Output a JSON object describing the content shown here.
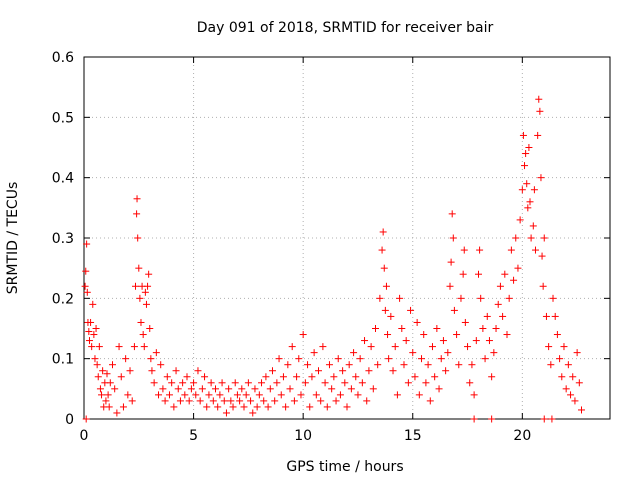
{
  "chart_data": {
    "type": "scatter",
    "title": "Day 091 of 2018, SRMTID for receiver bair",
    "xlabel": "GPS time / hours",
    "ylabel": "SRMTID / TECUs",
    "xlim": [
      0,
      24
    ],
    "ylim": [
      0,
      0.6
    ],
    "xticks": [
      0,
      5,
      10,
      15,
      20
    ],
    "yticks": [
      0,
      0.1,
      0.2,
      0.3,
      0.4,
      0.5,
      0.6
    ],
    "grid": true,
    "marker": "plus",
    "color": "#ff0000",
    "series": [
      {
        "name": "SRMTID",
        "points": [
          [
            0.05,
            0.22
          ],
          [
            0.08,
            0.245
          ],
          [
            0.12,
            0.29
          ],
          [
            0.15,
            0.21
          ],
          [
            0.18,
            0.16
          ],
          [
            0.22,
            0.145
          ],
          [
            0.25,
            0.13
          ],
          [
            0.3,
            0.16
          ],
          [
            0.35,
            0.12
          ],
          [
            0.4,
            0.19
          ],
          [
            0.45,
            0.14
          ],
          [
            0.5,
            0.1
          ],
          [
            0.55,
            0.15
          ],
          [
            0.6,
            0.09
          ],
          [
            0.65,
            0.07
          ],
          [
            0.7,
            0.12
          ],
          [
            0.75,
            0.05
          ],
          [
            0.8,
            0.04
          ],
          [
            0.85,
            0.08
          ],
          [
            0.9,
            0.02
          ],
          [
            0.95,
            0.06
          ],
          [
            1.0,
            0.03
          ],
          [
            1.05,
            0.075
          ],
          [
            1.1,
            0.04
          ],
          [
            1.15,
            0.02
          ],
          [
            1.2,
            0.06
          ],
          [
            1.3,
            0.09
          ],
          [
            1.4,
            0.05
          ],
          [
            1.5,
            0.01
          ],
          [
            1.6,
            0.12
          ],
          [
            1.7,
            0.07
          ],
          [
            1.8,
            0.02
          ],
          [
            1.9,
            0.1
          ],
          [
            2.0,
            0.04
          ],
          [
            2.1,
            0.08
          ],
          [
            2.2,
            0.03
          ],
          [
            2.3,
            0.12
          ],
          [
            2.35,
            0.22
          ],
          [
            2.4,
            0.34
          ],
          [
            2.42,
            0.365
          ],
          [
            2.45,
            0.3
          ],
          [
            2.5,
            0.25
          ],
          [
            2.55,
            0.2
          ],
          [
            2.6,
            0.16
          ],
          [
            2.65,
            0.22
          ],
          [
            2.7,
            0.14
          ],
          [
            2.75,
            0.12
          ],
          [
            2.8,
            0.21
          ],
          [
            2.85,
            0.19
          ],
          [
            2.9,
            0.22
          ],
          [
            2.95,
            0.24
          ],
          [
            3.0,
            0.15
          ],
          [
            3.05,
            0.1
          ],
          [
            3.1,
            0.08
          ],
          [
            3.2,
            0.06
          ],
          [
            3.3,
            0.11
          ],
          [
            3.4,
            0.04
          ],
          [
            3.5,
            0.09
          ],
          [
            3.6,
            0.05
          ],
          [
            3.7,
            0.03
          ],
          [
            3.8,
            0.07
          ],
          [
            3.9,
            0.04
          ],
          [
            4.0,
            0.06
          ],
          [
            4.1,
            0.02
          ],
          [
            4.2,
            0.08
          ],
          [
            4.3,
            0.05
          ],
          [
            4.4,
            0.03
          ],
          [
            4.5,
            0.06
          ],
          [
            4.6,
            0.04
          ],
          [
            4.7,
            0.07
          ],
          [
            4.8,
            0.03
          ],
          [
            4.9,
            0.05
          ],
          [
            5.0,
            0.06
          ],
          [
            5.1,
            0.04
          ],
          [
            5.2,
            0.08
          ],
          [
            5.3,
            0.03
          ],
          [
            5.4,
            0.05
          ],
          [
            5.5,
            0.07
          ],
          [
            5.6,
            0.02
          ],
          [
            5.7,
            0.04
          ],
          [
            5.8,
            0.06
          ],
          [
            5.9,
            0.03
          ],
          [
            6.0,
            0.05
          ],
          [
            6.1,
            0.02
          ],
          [
            6.2,
            0.04
          ],
          [
            6.3,
            0.06
          ],
          [
            6.4,
            0.03
          ],
          [
            6.5,
            0.01
          ],
          [
            6.6,
            0.05
          ],
          [
            6.7,
            0.03
          ],
          [
            6.8,
            0.02
          ],
          [
            6.9,
            0.06
          ],
          [
            7.0,
            0.04
          ],
          [
            7.1,
            0.03
          ],
          [
            7.2,
            0.05
          ],
          [
            7.3,
            0.02
          ],
          [
            7.4,
            0.04
          ],
          [
            7.5,
            0.06
          ],
          [
            7.6,
            0.03
          ],
          [
            7.7,
            0.01
          ],
          [
            7.8,
            0.05
          ],
          [
            7.9,
            0.02
          ],
          [
            8.0,
            0.04
          ],
          [
            8.1,
            0.06
          ],
          [
            8.2,
            0.03
          ],
          [
            8.3,
            0.07
          ],
          [
            8.4,
            0.02
          ],
          [
            8.5,
            0.05
          ],
          [
            8.6,
            0.08
          ],
          [
            8.7,
            0.03
          ],
          [
            8.8,
            0.06
          ],
          [
            8.9,
            0.1
          ],
          [
            9.0,
            0.04
          ],
          [
            9.1,
            0.07
          ],
          [
            9.2,
            0.02
          ],
          [
            9.3,
            0.09
          ],
          [
            9.4,
            0.05
          ],
          [
            9.5,
            0.12
          ],
          [
            9.6,
            0.03
          ],
          [
            9.7,
            0.07
          ],
          [
            9.8,
            0.1
          ],
          [
            9.9,
            0.04
          ],
          [
            10.0,
            0.14
          ],
          [
            10.1,
            0.06
          ],
          [
            10.2,
            0.09
          ],
          [
            10.3,
            0.02
          ],
          [
            10.4,
            0.07
          ],
          [
            10.5,
            0.11
          ],
          [
            10.6,
            0.04
          ],
          [
            10.7,
            0.08
          ],
          [
            10.8,
            0.03
          ],
          [
            10.9,
            0.12
          ],
          [
            11.0,
            0.06
          ],
          [
            11.1,
            0.02
          ],
          [
            11.2,
            0.09
          ],
          [
            11.3,
            0.05
          ],
          [
            11.4,
            0.07
          ],
          [
            11.5,
            0.03
          ],
          [
            11.6,
            0.1
          ],
          [
            11.7,
            0.04
          ],
          [
            11.8,
            0.08
          ],
          [
            11.9,
            0.06
          ],
          [
            12.0,
            0.02
          ],
          [
            12.1,
            0.09
          ],
          [
            12.2,
            0.05
          ],
          [
            12.3,
            0.11
          ],
          [
            12.4,
            0.07
          ],
          [
            12.5,
            0.04
          ],
          [
            12.6,
            0.1
          ],
          [
            12.7,
            0.06
          ],
          [
            12.8,
            0.13
          ],
          [
            12.9,
            0.03
          ],
          [
            13.0,
            0.08
          ],
          [
            13.1,
            0.12
          ],
          [
            13.2,
            0.05
          ],
          [
            13.3,
            0.15
          ],
          [
            13.4,
            0.09
          ],
          [
            13.5,
            0.2
          ],
          [
            13.6,
            0.28
          ],
          [
            13.65,
            0.31
          ],
          [
            13.7,
            0.25
          ],
          [
            13.75,
            0.18
          ],
          [
            13.8,
            0.22
          ],
          [
            13.85,
            0.14
          ],
          [
            13.9,
            0.1
          ],
          [
            14.0,
            0.17
          ],
          [
            14.1,
            0.08
          ],
          [
            14.2,
            0.12
          ],
          [
            14.3,
            0.04
          ],
          [
            14.4,
            0.2
          ],
          [
            14.5,
            0.15
          ],
          [
            14.6,
            0.09
          ],
          [
            14.7,
            0.13
          ],
          [
            14.8,
            0.06
          ],
          [
            14.9,
            0.18
          ],
          [
            15.0,
            0.11
          ],
          [
            15.1,
            0.07
          ],
          [
            15.2,
            0.16
          ],
          [
            15.3,
            0.04
          ],
          [
            15.4,
            0.1
          ],
          [
            15.5,
            0.14
          ],
          [
            15.6,
            0.06
          ],
          [
            15.7,
            0.09
          ],
          [
            15.8,
            0.03
          ],
          [
            15.9,
            0.12
          ],
          [
            16.0,
            0.07
          ],
          [
            16.1,
            0.15
          ],
          [
            16.2,
            0.05
          ],
          [
            16.3,
            0.1
          ],
          [
            16.4,
            0.13
          ],
          [
            16.5,
            0.08
          ],
          [
            16.6,
            0.11
          ],
          [
            16.7,
            0.22
          ],
          [
            16.75,
            0.26
          ],
          [
            16.8,
            0.34
          ],
          [
            16.85,
            0.3
          ],
          [
            16.9,
            0.18
          ],
          [
            17.0,
            0.14
          ],
          [
            17.1,
            0.09
          ],
          [
            17.2,
            0.2
          ],
          [
            17.3,
            0.24
          ],
          [
            17.35,
            0.28
          ],
          [
            17.4,
            0.16
          ],
          [
            17.5,
            0.12
          ],
          [
            17.6,
            0.06
          ],
          [
            17.7,
            0.09
          ],
          [
            17.8,
            0.04
          ],
          [
            17.9,
            0.13
          ],
          [
            18.0,
            0.24
          ],
          [
            18.05,
            0.28
          ],
          [
            18.1,
            0.2
          ],
          [
            18.2,
            0.15
          ],
          [
            18.3,
            0.1
          ],
          [
            18.4,
            0.17
          ],
          [
            18.5,
            0.13
          ],
          [
            18.6,
            0.07
          ],
          [
            18.7,
            0.11
          ],
          [
            18.8,
            0.15
          ],
          [
            18.9,
            0.19
          ],
          [
            19.0,
            0.22
          ],
          [
            19.1,
            0.17
          ],
          [
            19.2,
            0.24
          ],
          [
            19.3,
            0.14
          ],
          [
            19.4,
            0.2
          ],
          [
            19.5,
            0.28
          ],
          [
            19.6,
            0.23
          ],
          [
            19.7,
            0.3
          ],
          [
            19.8,
            0.25
          ],
          [
            19.9,
            0.33
          ],
          [
            20.0,
            0.38
          ],
          [
            20.05,
            0.47
          ],
          [
            20.1,
            0.42
          ],
          [
            20.15,
            0.44
          ],
          [
            20.2,
            0.39
          ],
          [
            20.25,
            0.35
          ],
          [
            20.3,
            0.45
          ],
          [
            20.35,
            0.36
          ],
          [
            20.4,
            0.3
          ],
          [
            20.5,
            0.32
          ],
          [
            20.55,
            0.38
          ],
          [
            20.6,
            0.28
          ],
          [
            20.7,
            0.47
          ],
          [
            20.75,
            0.53
          ],
          [
            20.8,
            0.51
          ],
          [
            20.85,
            0.4
          ],
          [
            20.9,
            0.27
          ],
          [
            20.95,
            0.22
          ],
          [
            21.0,
            0.3
          ],
          [
            21.1,
            0.17
          ],
          [
            21.2,
            0.12
          ],
          [
            21.3,
            0.09
          ],
          [
            21.4,
            0.2
          ],
          [
            21.5,
            0.17
          ],
          [
            21.6,
            0.14
          ],
          [
            21.7,
            0.1
          ],
          [
            21.8,
            0.07
          ],
          [
            21.9,
            0.12
          ],
          [
            22.0,
            0.05
          ],
          [
            22.1,
            0.09
          ],
          [
            22.2,
            0.04
          ],
          [
            22.3,
            0.07
          ],
          [
            22.4,
            0.03
          ],
          [
            22.5,
            0.11
          ],
          [
            22.6,
            0.06
          ],
          [
            22.7,
            0.015
          ],
          [
            0.1,
            0.0
          ],
          [
            17.8,
            0.0
          ],
          [
            18.6,
            0.0
          ],
          [
            21.0,
            0.0
          ],
          [
            21.35,
            0.0
          ]
        ]
      }
    ]
  }
}
